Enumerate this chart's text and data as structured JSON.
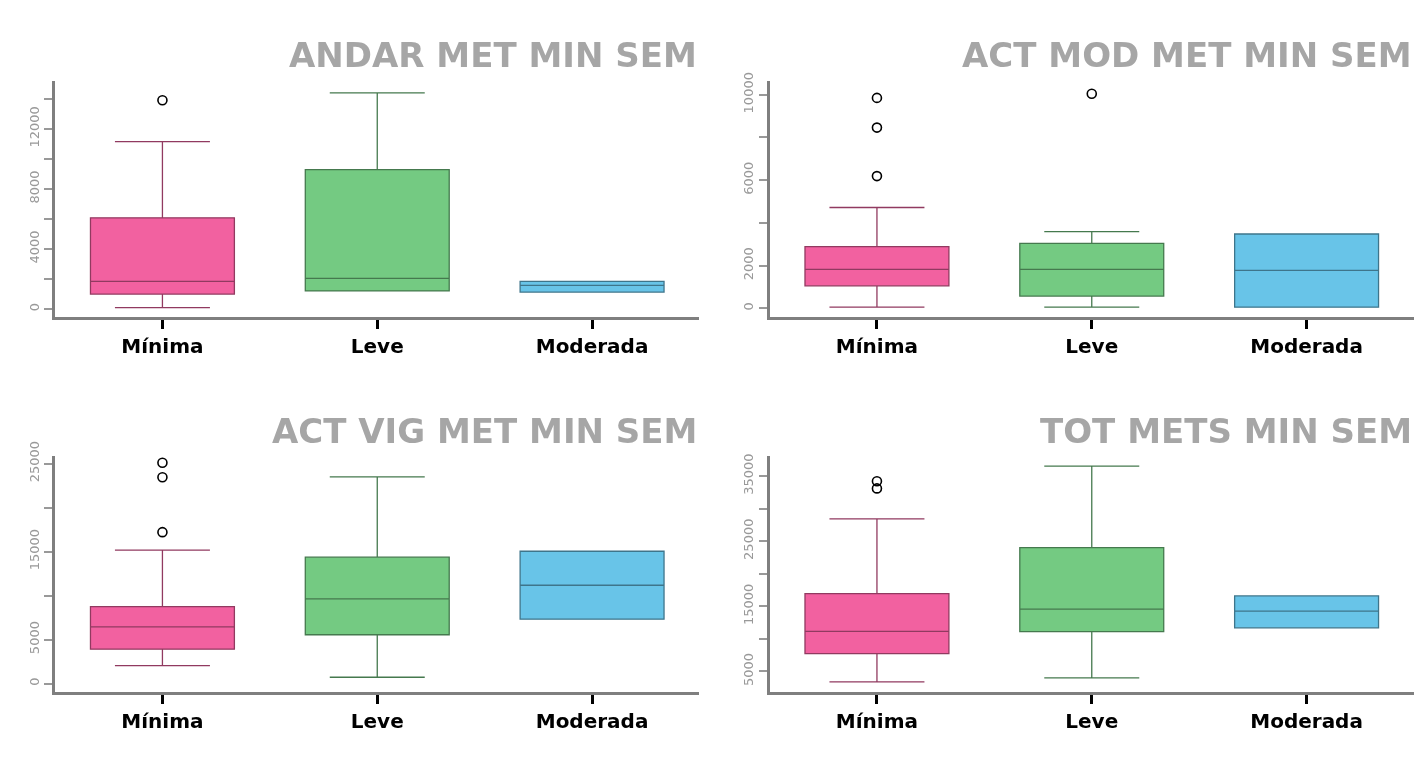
{
  "chart_data": [
    {
      "type": "box",
      "title": "ANDAR MET MIN SEM",
      "categories": [
        "Mínima",
        "Leve",
        "Moderada"
      ],
      "colors": [
        "#f261a0",
        "#74ca82",
        "#68c4e8"
      ],
      "ylim": [
        -520,
        15200
      ],
      "yticks": [
        0,
        {
          "value": 2000,
          "label": null
        },
        4000,
        {
          "value": 6000,
          "label": null
        },
        8000,
        {
          "value": 10000,
          "label": null
        },
        12000,
        {
          "value": 14000,
          "label": null
        }
      ],
      "boxes": [
        {
          "low": 80,
          "q1": 990,
          "median": 1830,
          "q3": 6070,
          "high": 11140,
          "outliers": [
            13900
          ]
        },
        {
          "low": 1200,
          "q1": 1200,
          "median": 2040,
          "q3": 9280,
          "high": 14400
        },
        {
          "low": 1120,
          "q1": 1120,
          "median": 1570,
          "q3": 1830,
          "high": 1830
        }
      ]
    },
    {
      "type": "box",
      "title": "ACT MOD MET MIN SEM",
      "categories": [
        "Mínima",
        "Leve",
        "Moderada"
      ],
      "colors": [
        "#f261a0",
        "#74ca82",
        "#68c4e8"
      ],
      "ylim": [
        -390,
        10650
      ],
      "yticks": [
        0,
        2000,
        {
          "value": 4000,
          "label": null
        },
        6000,
        {
          "value": 8000,
          "label": null
        },
        10000
      ],
      "boxes": [
        {
          "low": 55,
          "q1": 1055,
          "median": 1830,
          "q3": 2890,
          "high": 4720,
          "outliers": [
            6190,
            8460,
            9850
          ]
        },
        {
          "low": 55,
          "q1": 575,
          "median": 1830,
          "q3": 3040,
          "high": 3590,
          "outliers": [
            10040
          ]
        },
        {
          "low": 55,
          "q1": 55,
          "median": 1780,
          "q3": 3480,
          "high": 3480
        }
      ]
    },
    {
      "type": "box",
      "title": "ACT VIG MET MIN SEM",
      "categories": [
        "Mínima",
        "Leve",
        "Moderada"
      ],
      "colors": [
        "#f261a0",
        "#74ca82",
        "#68c4e8"
      ],
      "ylim": [
        -975,
        25840
      ],
      "yticks": [
        0,
        5000,
        {
          "value": 10000,
          "label": null
        },
        15000,
        {
          "value": 20000,
          "label": null
        },
        25000
      ],
      "boxes": [
        {
          "low": 2040,
          "q1": 3900,
          "median": 6430,
          "q3": 8730,
          "high": 15160,
          "outliers": [
            17200,
            23450,
            25090
          ]
        },
        {
          "low": 710,
          "q1": 5540,
          "median": 9620,
          "q3": 14360,
          "high": 23490
        },
        {
          "low": 7310,
          "q1": 7310,
          "median": 11170,
          "q3": 15030,
          "high": 15030
        }
      ]
    },
    {
      "type": "box",
      "title": "TOT METS MIN SEM",
      "categories": [
        "Mínima",
        "Leve",
        "Moderada"
      ],
      "colors": [
        "#f261a0",
        "#74ca82",
        "#68c4e8"
      ],
      "ylim": [
        1830,
        38050
      ],
      "yticks": [
        5000,
        {
          "value": 10000,
          "label": null
        },
        15000,
        {
          "value": 20000,
          "label": null
        },
        25000,
        {
          "value": 30000,
          "label": null
        },
        35000
      ],
      "boxes": [
        {
          "low": 3410,
          "q1": 7740,
          "median": 11150,
          "q3": 16950,
          "high": 28410,
          "outliers": [
            33100,
            34200
          ]
        },
        {
          "low": 4020,
          "q1": 11100,
          "median": 14570,
          "q3": 24020,
          "high": 36520
        },
        {
          "low": 11700,
          "q1": 11700,
          "median": 14270,
          "q3": 16590,
          "high": 16590
        }
      ]
    }
  ]
}
